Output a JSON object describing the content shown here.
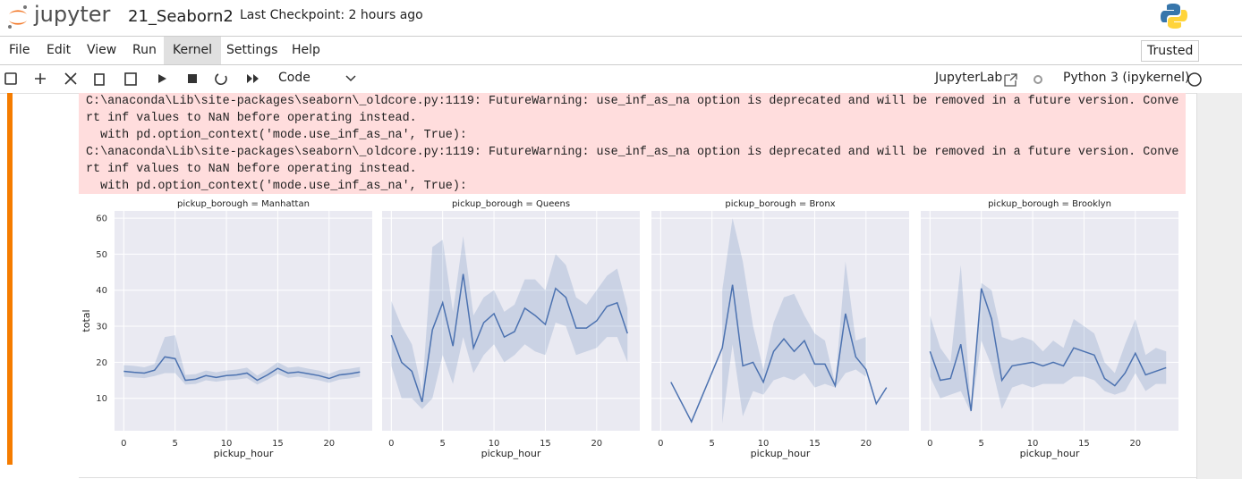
{
  "header": {
    "logo": "jupyter",
    "notebook_name": "21_Seaborn2",
    "checkpoint": "Last Checkpoint: 2 hours ago"
  },
  "menu": {
    "items": [
      "File",
      "Edit",
      "View",
      "Run",
      "Kernel",
      "Settings",
      "Help"
    ],
    "trusted": "Trusted"
  },
  "toolbar": {
    "cell_type": "Code",
    "jupyterlab": "JupyterLab",
    "kernel": "Python 3 (ipykernel)"
  },
  "warning": {
    "lines": [
      "C:\\anaconda\\Lib\\site-packages\\seaborn\\_oldcore.py:1119: FutureWarning: use_inf_as_na option is deprecated and will be removed in a future version. Conve",
      "rt inf values to NaN before operating instead.",
      "  with pd.option_context('mode.use_inf_as_na', True):",
      "C:\\anaconda\\Lib\\site-packages\\seaborn\\_oldcore.py:1119: FutureWarning: use_inf_as_na option is deprecated and will be removed in a future version. Conve",
      "rt inf values to NaN before operating instead.",
      "  with pd.option_context('mode.use_inf_as_na', True):"
    ]
  },
  "chart_data": [
    {
      "type": "line",
      "title": "pickup_borough = Manhattan",
      "xlabel": "pickup_hour",
      "ylabel": "total",
      "color": "#4c72b0",
      "grid": true,
      "x": [
        0,
        1,
        2,
        3,
        4,
        5,
        6,
        7,
        8,
        9,
        10,
        11,
        12,
        13,
        14,
        15,
        16,
        17,
        18,
        19,
        20,
        21,
        22,
        23
      ],
      "values": [
        17.5,
        17.2,
        17,
        17.8,
        21.5,
        21,
        15,
        15.3,
        16.3,
        15.8,
        16.3,
        16.5,
        17,
        15,
        16.5,
        18.3,
        17,
        17.3,
        16.8,
        16.3,
        15.5,
        16.5,
        16.8,
        17.3
      ],
      "ci_low": [
        16,
        15.8,
        15.6,
        16.2,
        17,
        17,
        13.8,
        14,
        15,
        14.6,
        15,
        15.2,
        15.6,
        13.8,
        15.2,
        16.8,
        15.7,
        16,
        15.5,
        15,
        14.3,
        15.2,
        15.5,
        16
      ],
      "ci_high": [
        19.2,
        19,
        18.6,
        19.5,
        27,
        27.5,
        16.5,
        16.7,
        17.7,
        17.2,
        17.7,
        18,
        18.5,
        16.3,
        18,
        20,
        18.5,
        18.8,
        18.2,
        17.7,
        16.8,
        17.9,
        18.2,
        18.7
      ],
      "xlim": [
        -0.9,
        24.2
      ],
      "xticks": [
        0,
        5,
        10,
        15,
        20
      ],
      "ylim": [
        1,
        62
      ],
      "yticks": [
        10,
        20,
        30,
        40,
        50,
        60
      ]
    },
    {
      "type": "line",
      "title": "pickup_borough = Queens",
      "xlabel": "pickup_hour",
      "color": "#4c72b0",
      "grid": true,
      "x": [
        0,
        1,
        2,
        3,
        4,
        5,
        6,
        7,
        8,
        9,
        10,
        11,
        12,
        13,
        14,
        15,
        16,
        17,
        18,
        19,
        20,
        21,
        22,
        23
      ],
      "values": [
        27.5,
        20,
        17.5,
        9,
        29,
        36.5,
        24.5,
        44.5,
        24,
        31,
        33.5,
        27,
        28.5,
        35,
        33,
        30.5,
        40.5,
        38,
        29.5,
        29.5,
        31.5,
        35.5,
        36.5,
        28
      ],
      "ci_low": [
        19,
        10,
        10,
        7,
        10,
        22,
        14,
        27,
        17,
        22,
        25,
        20,
        22,
        25,
        23,
        22,
        31,
        30,
        22,
        23,
        24,
        27,
        27,
        20
      ],
      "ci_high": [
        37,
        30,
        25,
        12,
        52,
        54,
        34,
        55,
        33,
        38,
        40,
        34,
        36,
        43,
        43,
        40,
        50,
        47,
        38,
        36,
        40,
        44,
        46,
        35
      ],
      "xlim": [
        -0.9,
        24.2
      ],
      "xticks": [
        0,
        5,
        10,
        15,
        20
      ]
    },
    {
      "type": "line",
      "title": "pickup_borough = Bronx",
      "xlabel": "pickup_hour",
      "color": "#4c72b0",
      "grid": true,
      "x": [
        1,
        3,
        6,
        7,
        8,
        9,
        10,
        11,
        12,
        13,
        14,
        15,
        16,
        17,
        18,
        19,
        20,
        21,
        22
      ],
      "values": [
        14.5,
        3.5,
        24,
        41.5,
        19,
        20,
        14.5,
        23,
        26.5,
        23,
        26,
        19.5,
        19.5,
        13.5,
        33.5,
        21.5,
        18,
        8.5,
        13
      ],
      "ci_low": [
        null,
        null,
        3,
        25,
        5,
        12,
        11,
        15,
        16,
        15,
        17,
        13,
        14,
        13,
        17,
        18,
        16,
        null,
        12
      ],
      "ci_high": [
        null,
        null,
        40,
        60,
        48,
        30,
        18,
        31,
        38,
        39,
        33,
        28,
        26,
        14,
        48,
        26,
        27,
        null,
        15
      ],
      "xlim": [
        -0.9,
        24.2
      ],
      "xticks": [
        0,
        5,
        10,
        15,
        20
      ]
    },
    {
      "type": "line",
      "title": "pickup_borough = Brooklyn",
      "xlabel": "pickup_hour",
      "color": "#4c72b0",
      "grid": true,
      "x": [
        0,
        1,
        2,
        3,
        4,
        5,
        6,
        7,
        8,
        9,
        10,
        11,
        12,
        13,
        14,
        15,
        16,
        17,
        18,
        19,
        20,
        21,
        22,
        23
      ],
      "values": [
        23,
        15,
        15.5,
        25,
        6.5,
        40.5,
        32,
        15,
        19,
        19.5,
        20,
        19,
        20,
        19,
        24,
        23,
        22,
        15.5,
        13.5,
        17,
        22.5,
        16.5,
        17.5,
        18.5
      ],
      "ci_low": [
        16,
        10,
        11,
        12,
        6,
        26,
        19,
        7,
        13,
        14,
        13,
        14,
        14,
        14,
        16,
        16,
        15,
        12,
        11,
        12,
        17,
        12,
        14,
        14
      ],
      "ci_high": [
        33,
        24,
        20,
        47,
        7,
        42,
        40,
        27,
        26,
        27,
        26,
        23,
        26,
        24,
        32,
        30,
        28,
        20,
        17,
        25,
        32,
        22,
        24,
        23
      ],
      "xlim": [
        -0.9,
        24.2
      ],
      "xticks": [
        0,
        5,
        10,
        15,
        20
      ]
    }
  ]
}
